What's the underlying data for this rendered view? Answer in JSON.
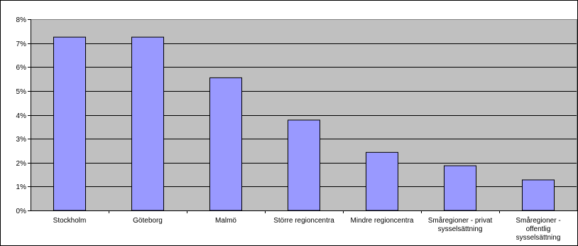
{
  "chart_data": {
    "type": "bar",
    "title": "",
    "xlabel": "",
    "ylabel": "",
    "ylim": [
      0,
      8
    ],
    "yticks": [
      "0%",
      "1%",
      "2%",
      "3%",
      "4%",
      "5%",
      "6%",
      "7%",
      "8%"
    ],
    "grid": true,
    "legend": "none",
    "categories": [
      [
        "Stockholm"
      ],
      [
        "Göteborg"
      ],
      [
        "Malmö"
      ],
      [
        "Större regioncentra"
      ],
      [
        "Mindre regioncentra"
      ],
      [
        "Småregioner - privat",
        "sysselsättning"
      ],
      [
        "Småregioner -",
        "offentlig",
        "sysselsättning"
      ]
    ],
    "values": [
      7.25,
      7.25,
      5.55,
      3.78,
      2.43,
      1.87,
      1.28
    ],
    "colors": {
      "plot_bg": "#c0c0c0",
      "bar_fill": "#9999ff",
      "bar_stroke": "#000000",
      "grid": "#000000"
    }
  }
}
